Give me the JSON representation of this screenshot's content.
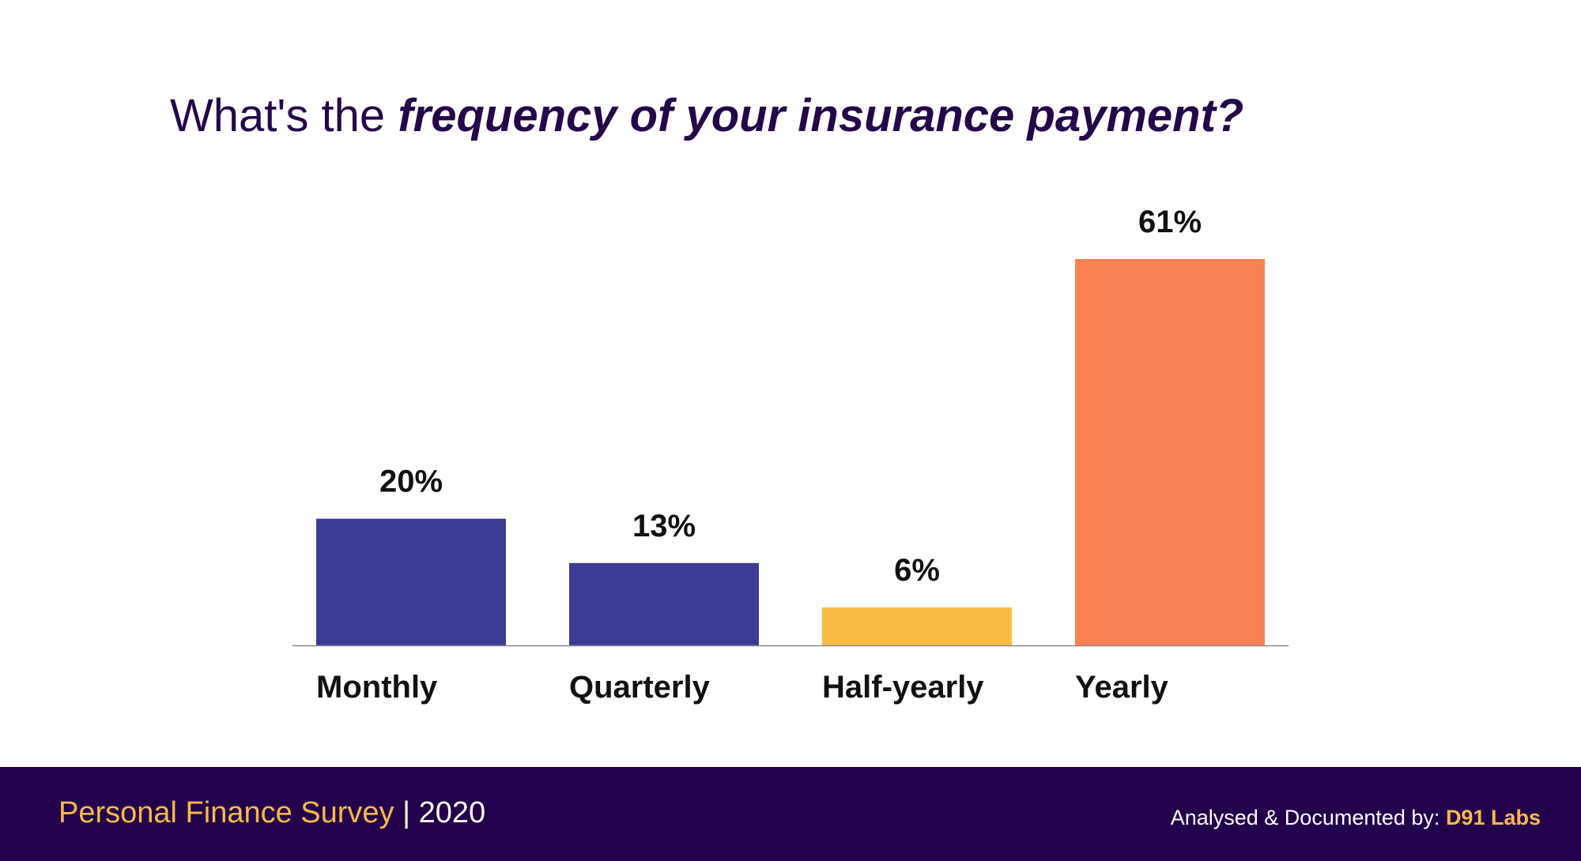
{
  "title": {
    "lead": "What's the",
    "emphasis": "frequency of your insurance payment?"
  },
  "chart_data": {
    "type": "bar",
    "categories": [
      "Monthly",
      "Quarterly",
      "Half-yearly",
      "Yearly"
    ],
    "values": [
      20,
      13,
      6,
      61
    ],
    "value_labels": [
      "20%",
      "13%",
      "6%",
      "61%"
    ],
    "colors": [
      "#3d3b96",
      "#3d3b96",
      "#f8bb43",
      "#f88153"
    ],
    "ylim": [
      0,
      61
    ],
    "grid": false,
    "legend": "none",
    "xlabel": "",
    "ylabel": ""
  },
  "footer": {
    "survey": "Personal Finance Survey",
    "separator": "|",
    "year": "2020",
    "credit_label": "Analysed & Documented by:",
    "credit_org": "D91 Labs"
  },
  "colors": {
    "title": "#24074a",
    "footer_bg": "#22004c",
    "footer_accent": "#f8b94a",
    "baseline": "#888888",
    "label_text": "#111111"
  }
}
